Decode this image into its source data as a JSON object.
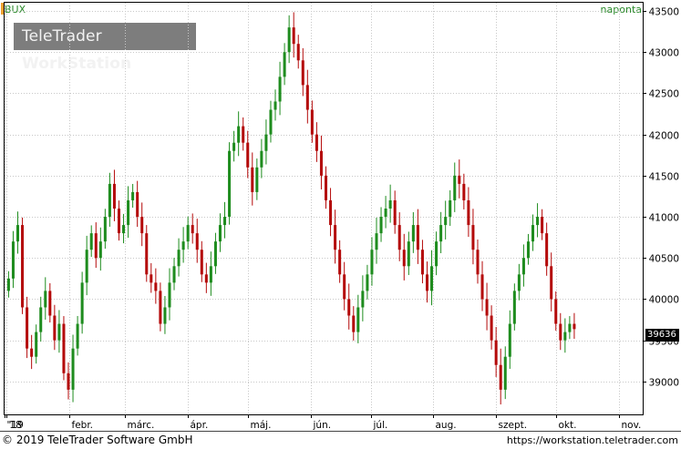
{
  "header": {
    "instrument": "BUX",
    "period": "naponta",
    "watermark_regular": "TeleTrader ",
    "watermark_bold": "WorkStation"
  },
  "last_value": "39636",
  "footer": {
    "copyright": "© 2019 TeleTrader Software GmbH",
    "url": "https://workstation.teletrader.com"
  },
  "colors": {
    "up": "#1e8c1e",
    "down": "#b40a0a",
    "grid": "#c8c8c8",
    "accent": "#2a8a2a"
  },
  "chart_data": {
    "type": "candlestick",
    "ylim": [
      38600,
      43600
    ],
    "yticks": [
      39000,
      39500,
      40000,
      40500,
      41000,
      41500,
      42000,
      42500,
      43000,
      43500
    ],
    "x_ticks": [
      {
        "label": "'18",
        "date": "2018-12-31"
      },
      {
        "label": "'19",
        "date": "2019-01-01"
      },
      {
        "label": "febr.",
        "date": "2019-02-01"
      },
      {
        "label": "márc.",
        "date": "2019-03-01"
      },
      {
        "label": "ápr.",
        "date": "2019-04-01"
      },
      {
        "label": "máj.",
        "date": "2019-05-01"
      },
      {
        "label": "jún.",
        "date": "2019-06-01"
      },
      {
        "label": "júl.",
        "date": "2019-07-01"
      },
      {
        "label": "aug.",
        "date": "2019-08-01"
      },
      {
        "label": "szept.",
        "date": "2019-09-01"
      },
      {
        "label": "okt.",
        "date": "2019-10-01"
      },
      {
        "label": "nov.",
        "date": "2019-11-01"
      }
    ],
    "series": [
      {
        "values": [
          40250,
          40700,
          40900,
          39900,
          39400,
          39300,
          39600,
          39900,
          40100,
          39800,
          39500,
          39700,
          39100,
          38900,
          39400,
          39700,
          40200,
          40600,
          40800,
          40500,
          40700,
          41000,
          41400,
          41100,
          40800,
          40900,
          41200,
          41300,
          41000,
          40800,
          40300,
          40200,
          40100,
          39700,
          39900,
          40200,
          40400,
          40600,
          40700,
          40900,
          40800,
          40600,
          40300,
          40200,
          40400,
          40700,
          40900,
          41000,
          41800,
          41900,
          42100,
          41900,
          41600,
          41300,
          41600,
          41800,
          42000,
          42300,
          42400,
          42700,
          43000,
          43300,
          43100,
          42900,
          42600,
          42300,
          42000,
          41800,
          41500,
          41200,
          40900,
          40600,
          40300,
          40000,
          39800,
          39600,
          39900,
          40100,
          40300,
          40600,
          40800,
          41000,
          41100,
          41200,
          40900,
          40600,
          40400,
          40700,
          40900,
          40600,
          40300,
          40100,
          40400,
          40700,
          40900,
          41000,
          41200,
          41500,
          41400,
          41200,
          40900,
          40600,
          40300,
          40000,
          39800,
          39500,
          39200,
          38900,
          39300,
          39700,
          40100,
          40300,
          40500,
          40700,
          40900,
          41000,
          40800,
          40400,
          40000,
          39700,
          39500,
          39600,
          39700,
          39636
        ]
      }
    ]
  }
}
